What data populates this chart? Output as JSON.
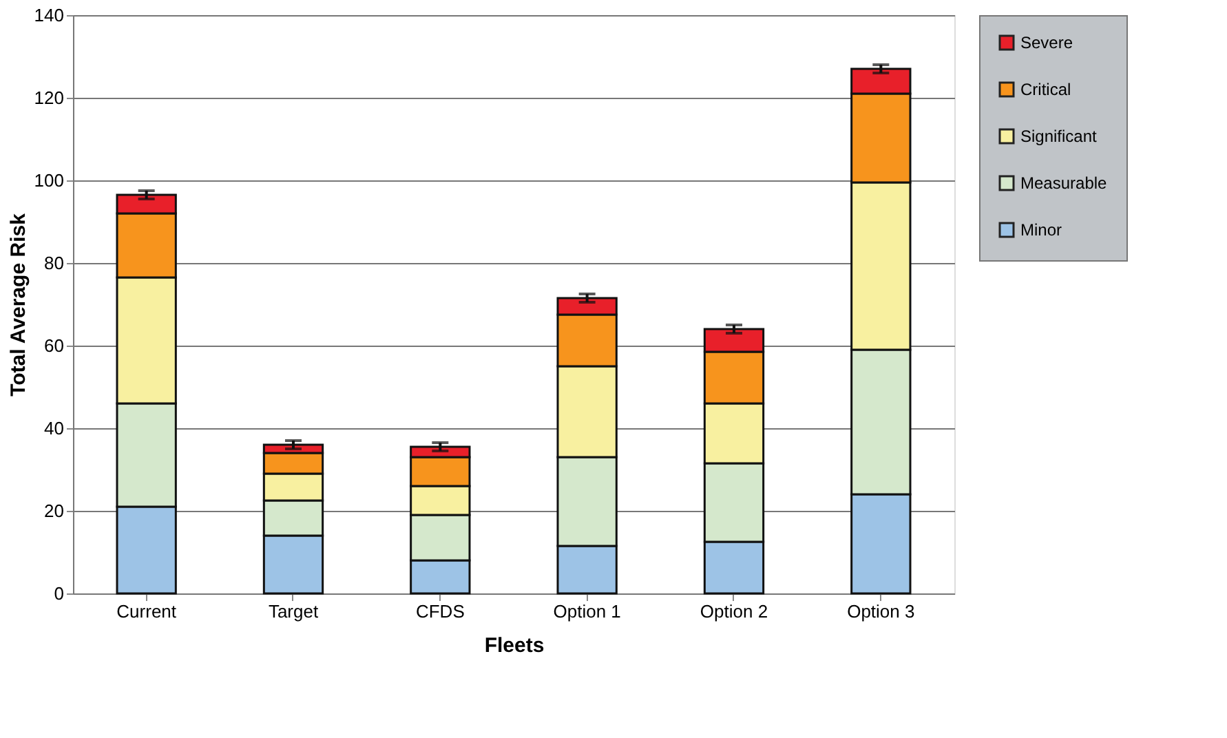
{
  "chart_data": {
    "type": "bar",
    "stacked": true,
    "xlabel": "Fleets",
    "ylabel": "Total Average Risk",
    "categories": [
      "Current",
      "Target",
      "CFDS",
      "Option 1",
      "Option 2",
      "Option 3"
    ],
    "series": [
      {
        "name": "Minor",
        "color": "#9dc3e6",
        "values": [
          21,
          14,
          8,
          11.5,
          12.5,
          24
        ]
      },
      {
        "name": "Measurable",
        "color": "#d5e8cc",
        "values": [
          25,
          8.5,
          11,
          21.5,
          19,
          35
        ]
      },
      {
        "name": "Significant",
        "color": "#f8f0a0",
        "values": [
          30.5,
          6.5,
          7,
          22,
          14.5,
          40.5
        ]
      },
      {
        "name": "Critical",
        "color": "#f7941d",
        "values": [
          15.5,
          5,
          7,
          12.5,
          12.5,
          21.5
        ]
      },
      {
        "name": "Severe",
        "color": "#e8202a",
        "values": [
          4.5,
          2,
          2.5,
          4,
          5.5,
          6
        ],
        "errors": [
          1,
          1,
          1,
          1,
          1,
          1
        ]
      }
    ],
    "ylim": [
      0,
      140
    ],
    "yticks": [
      0,
      20,
      40,
      60,
      80,
      100,
      120,
      140
    ],
    "grid": "y",
    "legend": "right"
  }
}
